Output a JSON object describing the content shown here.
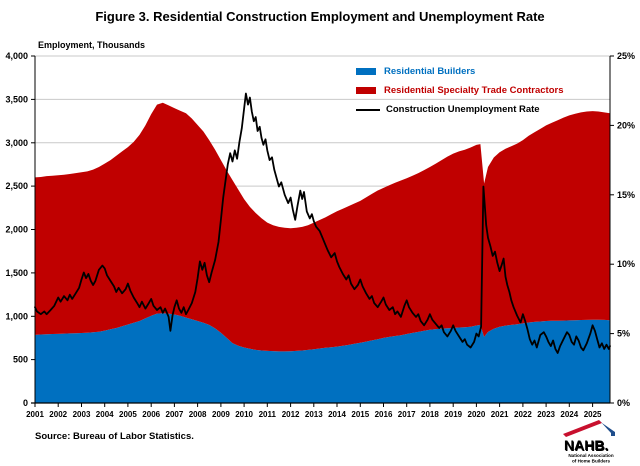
{
  "title": "Figure 3. Residential Construction Employment and Unemployment Rate",
  "source_note": "Source: Bureau of Labor Statistics.",
  "logo": {
    "text": "NAHB.",
    "line1": "National Association",
    "line2": "of Home Builders",
    "red": "#C8102E",
    "blue": "#1F4E8C",
    "grey": "#8A96A8"
  },
  "chart_data": {
    "type": "combo-stacked-area-line",
    "title": "Figure 3. Residential Construction Employment and Unemployment Rate",
    "grid": true,
    "colors": {
      "builders": "#0070C0",
      "contractors": "#C00000",
      "rate_line": "#000000",
      "grid": "#C9C9C9",
      "axis": "#000000"
    },
    "left_axis": {
      "label": "Employment, Thousands",
      "min": 0,
      "max": 4000,
      "ticks": [
        0,
        500,
        1000,
        1500,
        2000,
        2500,
        3000,
        3500,
        4000
      ],
      "tick_labels": [
        "0",
        "500",
        "1,000",
        "1,500",
        "2,000",
        "2,500",
        "3,000",
        "3,500",
        "4,000"
      ]
    },
    "right_axis": {
      "label": "Construction Unemployment Rate",
      "min": 0,
      "max": 25,
      "ticks": [
        0,
        5,
        10,
        15,
        20,
        25
      ],
      "tick_labels": [
        "0%",
        "5%",
        "10%",
        "15%",
        "20%",
        "25%"
      ]
    },
    "x_axis": {
      "min": 2001,
      "max": 2025.75,
      "tick_years": [
        2001,
        2002,
        2003,
        2004,
        2005,
        2006,
        2007,
        2008,
        2009,
        2010,
        2011,
        2012,
        2013,
        2014,
        2015,
        2016,
        2017,
        2018,
        2019,
        2020,
        2021,
        2022,
        2023,
        2024,
        2025
      ]
    },
    "legend": [
      {
        "label": "Residential Builders",
        "color": "#0070C0",
        "type": "area"
      },
      {
        "label": "Residential Specialty Trade Contractors",
        "color": "#C00000",
        "type": "area"
      },
      {
        "label": "Construction Unemployment Rate",
        "color": "#000000",
        "type": "line"
      }
    ],
    "employment": {
      "units": "thousands",
      "x": [
        2001,
        2001.25,
        2001.5,
        2001.75,
        2002,
        2002.25,
        2002.5,
        2002.75,
        2003,
        2003.25,
        2003.5,
        2003.75,
        2004,
        2004.25,
        2004.5,
        2004.75,
        2005,
        2005.25,
        2005.5,
        2005.75,
        2006,
        2006.25,
        2006.5,
        2006.75,
        2007,
        2007.25,
        2007.5,
        2007.75,
        2008,
        2008.25,
        2008.5,
        2008.75,
        2009,
        2009.25,
        2009.5,
        2009.75,
        2010,
        2010.25,
        2010.5,
        2010.75,
        2011,
        2011.25,
        2011.5,
        2011.75,
        2012,
        2012.25,
        2012.5,
        2012.75,
        2013,
        2013.25,
        2013.5,
        2013.75,
        2014,
        2014.25,
        2014.5,
        2014.75,
        2015,
        2015.25,
        2015.5,
        2015.75,
        2016,
        2016.25,
        2016.5,
        2016.75,
        2017,
        2017.25,
        2017.5,
        2017.75,
        2018,
        2018.25,
        2018.5,
        2018.75,
        2019,
        2019.25,
        2019.5,
        2019.75,
        2020,
        2020.17,
        2020.33,
        2020.5,
        2020.75,
        2021,
        2021.25,
        2021.5,
        2021.75,
        2022,
        2022.25,
        2022.5,
        2022.75,
        2023,
        2023.25,
        2023.5,
        2023.75,
        2024,
        2024.25,
        2024.5,
        2024.75,
        2025,
        2025.25,
        2025.5,
        2025.75
      ],
      "builders": [
        785,
        790,
        792,
        795,
        797,
        800,
        802,
        805,
        807,
        810,
        815,
        822,
        835,
        850,
        865,
        885,
        905,
        925,
        945,
        975,
        1005,
        1030,
        1035,
        1030,
        1020,
        1005,
        985,
        965,
        945,
        925,
        900,
        860,
        810,
        750,
        690,
        660,
        640,
        625,
        612,
        605,
        600,
        598,
        595,
        595,
        597,
        600,
        605,
        612,
        620,
        628,
        636,
        643,
        650,
        660,
        670,
        682,
        695,
        708,
        722,
        735,
        750,
        762,
        772,
        782,
        795,
        808,
        820,
        832,
        845,
        852,
        858,
        862,
        866,
        870,
        874,
        880,
        893,
        900,
        762,
        820,
        855,
        880,
        892,
        900,
        908,
        918,
        928,
        935,
        940,
        945,
        947,
        948,
        950,
        952,
        955,
        957,
        958,
        960,
        960,
        958,
        955
      ],
      "contractors": [
        1815,
        1815,
        1823,
        1825,
        1828,
        1830,
        1838,
        1845,
        1853,
        1860,
        1875,
        1898,
        1925,
        1950,
        1985,
        2015,
        2045,
        2085,
        2145,
        2225,
        2325,
        2410,
        2425,
        2400,
        2380,
        2365,
        2355,
        2315,
        2260,
        2205,
        2130,
        2060,
        1990,
        1930,
        1880,
        1800,
        1710,
        1635,
        1578,
        1525,
        1480,
        1452,
        1435,
        1425,
        1418,
        1420,
        1425,
        1438,
        1460,
        1482,
        1504,
        1532,
        1560,
        1580,
        1600,
        1618,
        1635,
        1662,
        1688,
        1715,
        1730,
        1748,
        1768,
        1783,
        1795,
        1812,
        1830,
        1853,
        1875,
        1908,
        1942,
        1978,
        2009,
        2030,
        2046,
        2065,
        2082,
        2085,
        1768,
        1900,
        1975,
        2010,
        2038,
        2060,
        2082,
        2112,
        2152,
        2185,
        2220,
        2255,
        2283,
        2312,
        2340,
        2363,
        2380,
        2393,
        2402,
        2405,
        2400,
        2392,
        2385
      ]
    },
    "unemployment_rate": {
      "units": "percent",
      "x": [
        2001,
        2001.08,
        2001.25,
        2001.4,
        2001.5,
        2001.67,
        2001.83,
        2002,
        2002.1,
        2002.25,
        2002.4,
        2002.5,
        2002.6,
        2002.75,
        2002.9,
        2003,
        2003.1,
        2003.2,
        2003.3,
        2003.4,
        2003.5,
        2003.6,
        2003.75,
        2003.9,
        2004,
        2004.1,
        2004.25,
        2004.4,
        2004.5,
        2004.6,
        2004.75,
        2004.9,
        2005,
        2005.1,
        2005.25,
        2005.4,
        2005.5,
        2005.6,
        2005.75,
        2005.9,
        2006,
        2006.1,
        2006.25,
        2006.4,
        2006.5,
        2006.6,
        2006.75,
        2006.83,
        2006.92,
        2007,
        2007.1,
        2007.2,
        2007.3,
        2007.4,
        2007.5,
        2007.6,
        2007.75,
        2007.9,
        2008,
        2008.1,
        2008.2,
        2008.3,
        2008.4,
        2008.5,
        2008.6,
        2008.75,
        2008.9,
        2009,
        2009.1,
        2009.2,
        2009.3,
        2009.4,
        2009.5,
        2009.6,
        2009.7,
        2009.8,
        2009.9,
        2010,
        2010.08,
        2010.17,
        2010.25,
        2010.33,
        2010.42,
        2010.5,
        2010.58,
        2010.67,
        2010.75,
        2010.83,
        2010.92,
        2011,
        2011.1,
        2011.2,
        2011.3,
        2011.4,
        2011.5,
        2011.6,
        2011.75,
        2011.9,
        2012,
        2012.1,
        2012.2,
        2012.3,
        2012.42,
        2012.5,
        2012.58,
        2012.7,
        2012.83,
        2012.92,
        2013,
        2013.1,
        2013.25,
        2013.4,
        2013.5,
        2013.6,
        2013.75,
        2013.9,
        2014,
        2014.1,
        2014.25,
        2014.4,
        2014.5,
        2014.6,
        2014.75,
        2014.9,
        2015,
        2015.1,
        2015.25,
        2015.4,
        2015.5,
        2015.6,
        2015.75,
        2015.9,
        2016,
        2016.1,
        2016.25,
        2016.4,
        2016.5,
        2016.6,
        2016.75,
        2016.9,
        2017,
        2017.1,
        2017.25,
        2017.4,
        2017.5,
        2017.6,
        2017.75,
        2017.9,
        2018,
        2018.1,
        2018.25,
        2018.4,
        2018.5,
        2018.6,
        2018.75,
        2018.9,
        2019,
        2019.1,
        2019.25,
        2019.4,
        2019.5,
        2019.6,
        2019.75,
        2019.9,
        2020,
        2020.1,
        2020.2,
        2020.3,
        2020.42,
        2020.5,
        2020.6,
        2020.7,
        2020.8,
        2020.9,
        2021,
        2021.08,
        2021.17,
        2021.25,
        2021.33,
        2021.42,
        2021.5,
        2021.6,
        2021.75,
        2021.9,
        2022,
        2022.1,
        2022.2,
        2022.3,
        2022.4,
        2022.5,
        2022.6,
        2022.75,
        2022.9,
        2023,
        2023.1,
        2023.2,
        2023.3,
        2023.4,
        2023.5,
        2023.6,
        2023.75,
        2023.9,
        2024,
        2024.1,
        2024.2,
        2024.3,
        2024.4,
        2024.5,
        2024.6,
        2024.75,
        2024.9,
        2025,
        2025.1,
        2025.2,
        2025.3,
        2025.4,
        2025.5,
        2025.6,
        2025.7,
        2025.75
      ],
      "values": [
        6.9,
        6.6,
        6.4,
        6.6,
        6.4,
        6.7,
        7.0,
        7.6,
        7.3,
        7.7,
        7.4,
        7.8,
        7.5,
        7.9,
        8.3,
        8.9,
        9.4,
        9.0,
        9.3,
        8.8,
        8.5,
        8.8,
        9.6,
        9.9,
        9.7,
        9.2,
        8.8,
        8.4,
        8.0,
        8.3,
        7.9,
        8.2,
        8.6,
        8.1,
        7.6,
        7.2,
        6.9,
        7.3,
        6.8,
        7.2,
        7.5,
        7.0,
        6.7,
        6.9,
        6.5,
        6.8,
        6.2,
        5.2,
        6.3,
        6.9,
        7.4,
        6.8,
        6.5,
        6.9,
        6.4,
        6.7,
        7.2,
        8.0,
        9.0,
        10.2,
        9.6,
        10.1,
        9.2,
        8.7,
        9.4,
        10.3,
        11.6,
        13.2,
        14.8,
        16.0,
        17.2,
        18.0,
        17.4,
        18.2,
        17.6,
        18.8,
        19.8,
        21.2,
        22.3,
        21.5,
        22.0,
        21.0,
        20.3,
        20.6,
        19.6,
        19.9,
        19.1,
        18.6,
        19.0,
        18.2,
        17.5,
        17.7,
        16.8,
        16.2,
        15.6,
        15.9,
        15.0,
        14.4,
        14.8,
        13.9,
        13.2,
        14.2,
        15.3,
        14.7,
        15.2,
        13.8,
        13.3,
        13.6,
        13.1,
        12.7,
        12.4,
        11.8,
        11.4,
        11.0,
        10.5,
        10.8,
        10.2,
        9.8,
        9.3,
        8.9,
        9.2,
        8.6,
        8.2,
        8.5,
        8.9,
        8.4,
        7.9,
        7.5,
        7.7,
        7.2,
        6.9,
        7.3,
        7.6,
        7.1,
        6.7,
        6.9,
        6.4,
        6.6,
        6.2,
        7.0,
        7.4,
        6.9,
        6.5,
        6.2,
        6.4,
        5.9,
        5.6,
        6.0,
        6.4,
        6.0,
        5.7,
        5.4,
        5.6,
        5.1,
        4.8,
        5.2,
        5.6,
        5.2,
        4.8,
        4.4,
        4.6,
        4.2,
        4.0,
        4.4,
        5.0,
        4.8,
        5.5,
        15.6,
        12.8,
        11.9,
        11.3,
        10.6,
        10.9,
        10.1,
        9.5,
        9.9,
        10.4,
        9.1,
        8.5,
        8.0,
        7.4,
        6.9,
        6.3,
        5.8,
        6.4,
        5.9,
        5.3,
        4.6,
        4.2,
        4.5,
        4.0,
        4.9,
        5.1,
        4.8,
        4.4,
        4.1,
        4.5,
        3.9,
        3.6,
        4.1,
        4.6,
        5.1,
        4.9,
        4.4,
        4.2,
        4.8,
        4.5,
        4.0,
        3.8,
        4.3,
        5.0,
        5.6,
        5.2,
        4.6,
        4.0,
        4.3,
        3.9,
        4.2,
        3.9,
        4.1
      ]
    }
  }
}
